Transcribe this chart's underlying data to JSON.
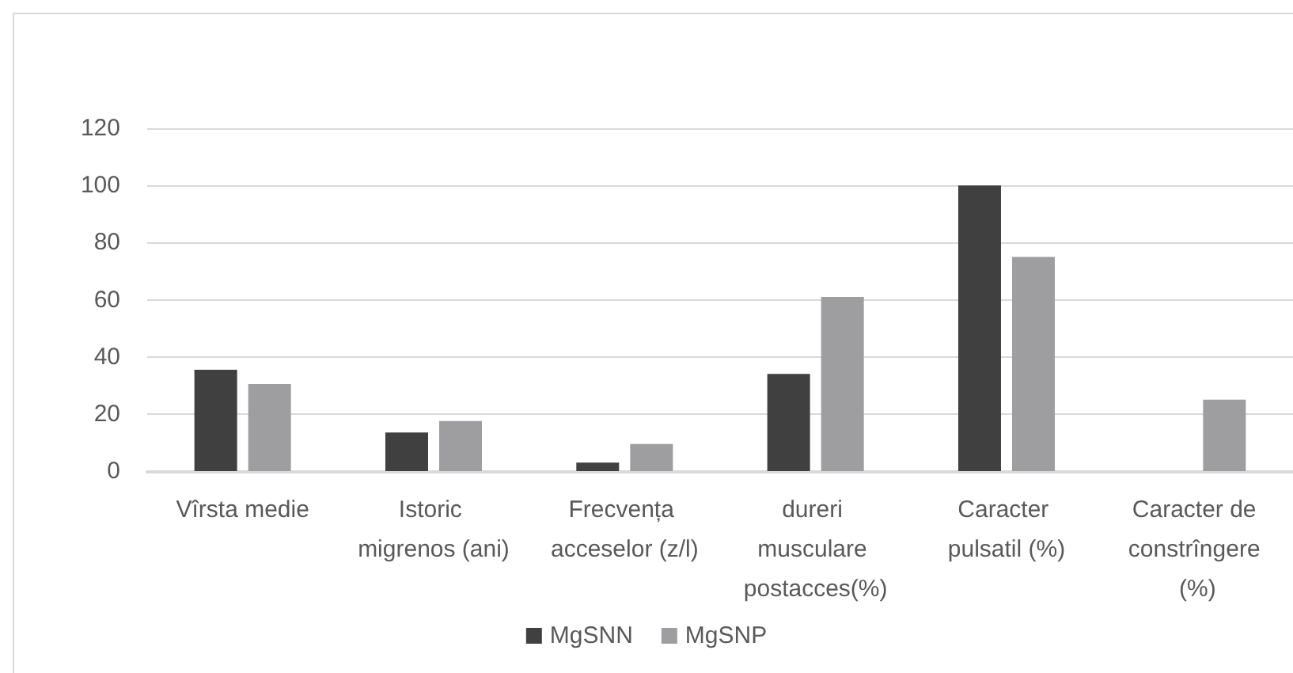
{
  "chart_data": {
    "type": "bar",
    "categories": [
      "Vîrsta medie",
      "Istoric migrenos (ani)",
      "Frecvența acceselor (z/l)",
      "dureri musculare postacces(%)",
      "Caracter pulsatil (%)",
      "Caracter de constrîngere (%)"
    ],
    "series": [
      {
        "name": "MgSNN",
        "color": "#404040",
        "values": [
          35.5,
          13.5,
          3,
          34,
          100,
          0
        ]
      },
      {
        "name": "MgSNP",
        "color": "#9e9ea1",
        "values": [
          30.5,
          17.5,
          9.5,
          61,
          75,
          25
        ]
      }
    ],
    "ylim": [
      0,
      120
    ],
    "yticks": [
      0,
      20,
      40,
      60,
      80,
      100,
      120
    ],
    "grid": "y",
    "legend": "bottom"
  }
}
